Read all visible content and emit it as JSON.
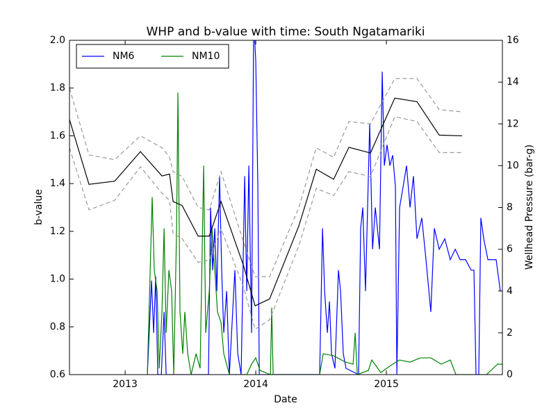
{
  "chart_data": {
    "type": "line",
    "title": "WHP and b-value with time: South Ngatamariki",
    "x_label": "Date",
    "y_label": "b-value",
    "y2_label": "Wellhead Pressure (bar-g)",
    "y2_color": "#ff0000",
    "xlim": [
      2012.574,
      2015.888
    ],
    "xticks": [
      2013,
      2014,
      2015
    ],
    "ylim": [
      0.6,
      2.0
    ],
    "yticks": [
      0.6,
      0.8,
      {
        "value": 1,
        "label": "1.0"
      },
      1.2,
      1.4,
      1.6,
      1.8,
      {
        "value": 2,
        "label": "2.0"
      }
    ],
    "y2lim": [
      0,
      16
    ],
    "y2ticks": [
      0,
      2,
      4,
      6,
      8,
      10,
      12,
      14,
      16
    ],
    "legend": "upper left",
    "series": [
      {
        "name": "NM6",
        "color": "#0000ff",
        "axis": "y2",
        "x": [
          2013.17,
          2013.202,
          2013.218,
          2013.234,
          2013.25,
          2013.277,
          2013.298,
          2013.314,
          2013.638,
          2013.654,
          2013.67,
          2013.686,
          2013.702,
          2013.723,
          2013.739,
          2013.755,
          2013.777,
          2013.798,
          2013.84,
          2013.862,
          2013.888,
          2013.915,
          2013.931,
          2013.947,
          2013.968,
          2013.984,
          2014.0,
          2014.016,
          2014.027,
          2014.489,
          2014.511,
          2014.527,
          2014.548,
          2014.564,
          2014.58,
          2014.606,
          2014.633,
          2014.649,
          2014.67,
          2014.691,
          2014.755,
          2014.787,
          2014.803,
          2014.819,
          2014.84,
          2014.872,
          2014.894,
          2014.915,
          2014.947,
          2014.968,
          2014.984,
          2015.005,
          2015.027,
          2015.048,
          2015.069,
          2015.08,
          2015.101,
          2015.128,
          2015.154,
          2015.181,
          2015.207,
          2015.234,
          2015.271,
          2015.303,
          2015.34,
          2015.367,
          2015.404,
          2015.447,
          2015.489,
          2015.527,
          2015.564,
          2015.606,
          2015.649,
          2015.67,
          2015.686,
          2015.707,
          2015.723,
          2015.745,
          2015.777,
          2015.809,
          2015.84,
          2015.872
        ],
        "values": [
          0,
          4.5,
          2,
          4.7,
          0,
          0,
          3,
          0,
          0,
          8,
          5,
          7,
          4,
          9.5,
          5,
          2,
          4,
          0,
          5,
          1,
          0,
          9.5,
          4,
          10,
          2,
          17,
          15,
          9,
          0,
          0,
          7,
          4,
          2,
          3.5,
          1,
          0.3,
          5,
          4,
          1,
          0.3,
          0.1,
          0,
          7,
          8,
          4,
          12,
          6,
          8,
          6,
          14.5,
          10,
          11,
          10,
          10.5,
          9,
          0,
          8,
          9,
          10,
          8,
          9.5,
          6.5,
          7.5,
          5.5,
          3,
          7,
          6,
          6.5,
          5.5,
          6,
          5.5,
          5.5,
          5,
          5,
          0,
          0,
          7.5,
          6.5,
          5.5,
          5.5,
          5.5,
          4
        ]
      },
      {
        "name": "NM10",
        "color": "#008000",
        "axis": "y2",
        "x": [
          2013.17,
          2013.207,
          2013.223,
          2013.245,
          2013.261,
          2013.282,
          2013.298,
          2013.314,
          2013.335,
          2013.356,
          2013.372,
          2013.394,
          2013.404,
          2013.42,
          2013.441,
          2013.457,
          2013.479,
          2013.505,
          2013.543,
          2013.574,
          2013.601,
          2013.617,
          2013.644,
          2013.665,
          2013.686,
          2013.707,
          2013.734,
          2013.755,
          2013.798,
          2013.931,
          2013.968,
          2014.0,
          2014.032,
          2014.112,
          2014.122,
          2014.133,
          2014.489,
          2014.516,
          2014.596,
          2014.686,
          2014.745,
          2014.761,
          2014.777,
          2014.862,
          2014.888,
          2014.957,
          2015.048,
          2015.101,
          2015.181,
          2015.261,
          2015.34,
          2015.42,
          2015.489,
          2015.532,
          2015.766,
          2015.851,
          2015.888
        ],
        "values": [
          0,
          8.5,
          5,
          4,
          0.3,
          3,
          7,
          2,
          5,
          4,
          0,
          7,
          13.5,
          3,
          1,
          3,
          1,
          0,
          1,
          0.3,
          10,
          2,
          4,
          7,
          5,
          3,
          2.5,
          1,
          0,
          0,
          0.5,
          0.8,
          0.2,
          0,
          3.2,
          0,
          0,
          1,
          0.9,
          0.6,
          0.5,
          2,
          0,
          0.2,
          0.7,
          0.1,
          0.5,
          0.7,
          0.6,
          0.8,
          0.8,
          0.5,
          0.7,
          0,
          0,
          0.5,
          0.5
        ]
      },
      {
        "color": "#000000",
        "dash": false,
        "x": [
          2012.574,
          2012.723,
          2012.92,
          2013.117,
          2013.282,
          2013.34,
          2013.367,
          2013.436,
          2013.559,
          2013.644,
          2013.734,
          2013.904,
          2013.995,
          2014.106,
          2014.33,
          2014.463,
          2014.596,
          2014.713,
          2014.878,
          2015.064,
          2015.234,
          2015.404,
          2015.58
        ],
        "values": [
          1.668,
          1.397,
          1.41,
          1.534,
          1.432,
          1.44,
          1.325,
          1.308,
          1.18,
          1.18,
          1.325,
          1.06,
          0.888,
          0.917,
          1.223,
          1.46,
          1.418,
          1.552,
          1.528,
          1.758,
          1.743,
          1.603,
          1.6
        ]
      },
      {
        "color": "#999999",
        "dash": true,
        "x": [
          2012.574,
          2012.723,
          2012.92,
          2013.117,
          2013.282,
          2013.34,
          2013.367,
          2013.436,
          2013.559,
          2013.644,
          2013.734,
          2013.904,
          2013.995,
          2014.106,
          2014.33,
          2014.463,
          2014.596,
          2014.713,
          2014.878,
          2015.064,
          2015.234,
          2015.404,
          2015.58
        ],
        "values": [
          1.8,
          1.52,
          1.5,
          1.6,
          1.55,
          1.51,
          1.45,
          1.43,
          1.3,
          1.29,
          1.45,
          1.16,
          1.01,
          1.01,
          1.3,
          1.55,
          1.51,
          1.66,
          1.65,
          1.84,
          1.84,
          1.71,
          1.7
        ]
      },
      {
        "color": "#999999",
        "dash": true,
        "x": [
          2012.574,
          2012.723,
          2012.92,
          2013.117,
          2013.282,
          2013.34,
          2013.367,
          2013.436,
          2013.559,
          2013.644,
          2013.734,
          2013.904,
          2013.995,
          2014.106,
          2014.33,
          2014.463,
          2014.596,
          2014.713,
          2014.878,
          2015.064,
          2015.234,
          2015.404,
          2015.58
        ],
        "values": [
          1.55,
          1.29,
          1.33,
          1.47,
          1.36,
          1.33,
          1.19,
          1.17,
          1.07,
          1.08,
          1.21,
          0.97,
          0.79,
          0.83,
          1.14,
          1.38,
          1.35,
          1.45,
          1.43,
          1.68,
          1.66,
          1.53,
          1.53
        ]
      }
    ]
  }
}
